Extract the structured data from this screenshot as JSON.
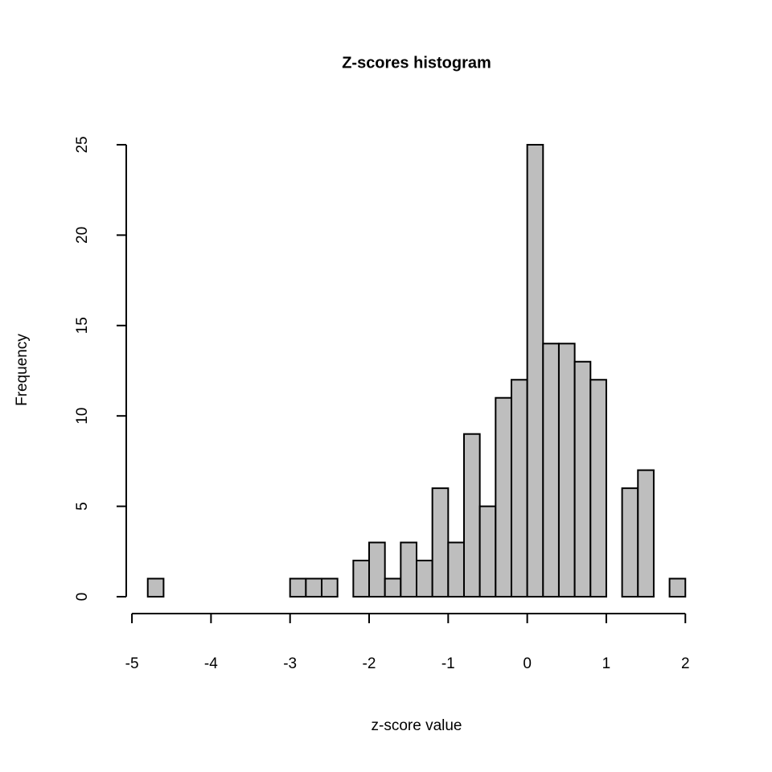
{
  "chart_data": {
    "type": "histogram",
    "title": "Z-scores histogram",
    "x_label": "z-score value",
    "y_label": "Frequency",
    "bins": [
      -4.8,
      -4.6,
      -4.4,
      -4.2,
      -4.0,
      -3.8,
      -3.6,
      -3.4,
      -3.2,
      -3.0,
      -2.8,
      -2.6,
      -2.4,
      -2.2,
      -2.0,
      -1.8,
      -1.6,
      -1.4,
      -1.2,
      -1.0,
      -0.8,
      -0.6,
      -0.4,
      -0.2,
      0.0,
      0.2,
      0.4,
      0.6,
      0.8,
      1.0,
      1.2,
      1.4,
      1.6,
      1.8,
      2.0
    ],
    "values": [
      1,
      0,
      0,
      0,
      0,
      0,
      0,
      0,
      0,
      1,
      1,
      1,
      0,
      2,
      3,
      1,
      3,
      2,
      6,
      3,
      9,
      5,
      11,
      12,
      25,
      14,
      14,
      13,
      12,
      0,
      6,
      7,
      0,
      1
    ],
    "color": "#bebebe",
    "xlim": [
      -5.072,
      2.272
    ],
    "ylim": [
      -1,
      26
    ],
    "xticks": [
      -5,
      -4,
      -3,
      -2,
      -1,
      0,
      1,
      2
    ],
    "yticks": [
      0,
      5,
      10,
      15,
      20,
      25
    ]
  }
}
